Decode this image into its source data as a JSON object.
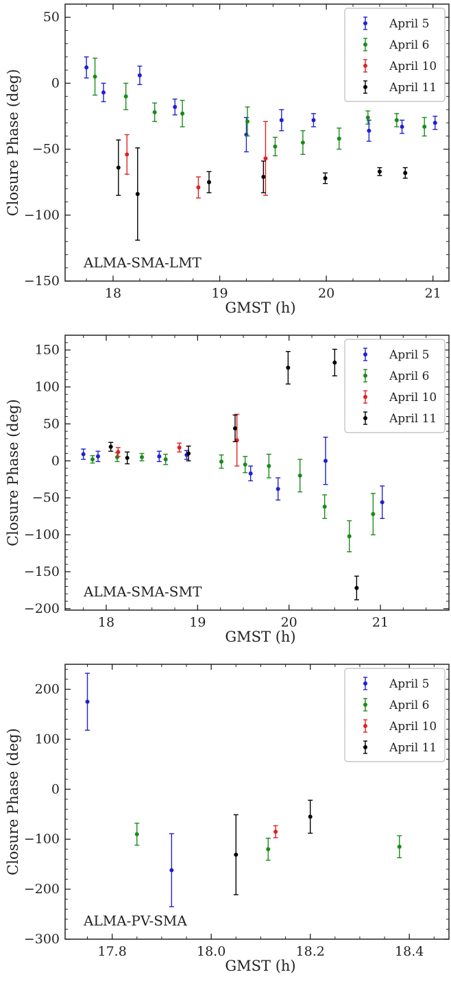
{
  "chart_data": [
    {
      "type": "scatter",
      "panel_label": "ALMA-SMA-LMT",
      "xlabel": "GMST (h)",
      "ylabel": "Closure Phase (deg)",
      "xlim": [
        17.55,
        21.15
      ],
      "ylim": [
        -150,
        60
      ],
      "xticks": [
        18,
        19,
        20,
        21
      ],
      "yticks": [
        -150,
        -100,
        -50,
        0,
        50
      ],
      "x_minor_step": 0.25,
      "y_minor_step": 10,
      "legend": "top-right",
      "grid": false,
      "series": [
        {
          "name": "April 5",
          "color": "#2020d0",
          "points": [
            [
              17.75,
              12,
              8
            ],
            [
              17.91,
              -7,
              7
            ],
            [
              18.25,
              6,
              7
            ],
            [
              18.58,
              -18,
              6
            ],
            [
              19.25,
              -39,
              13
            ],
            [
              19.58,
              -28,
              8
            ],
            [
              19.88,
              -28,
              5
            ],
            [
              20.4,
              -36,
              8
            ],
            [
              20.71,
              -33,
              5
            ],
            [
              21.02,
              -30,
              5
            ]
          ]
        },
        {
          "name": "April 6",
          "color": "#1a8a1a",
          "points": [
            [
              17.83,
              5,
              14
            ],
            [
              18.12,
              -10,
              10
            ],
            [
              18.39,
              -22,
              7
            ],
            [
              18.65,
              -23,
              10
            ],
            [
              19.26,
              -29,
              11
            ],
            [
              19.52,
              -48,
              7
            ],
            [
              19.78,
              -45,
              9
            ],
            [
              20.12,
              -42,
              8
            ],
            [
              20.39,
              -26,
              5
            ],
            [
              20.66,
              -28,
              5
            ],
            [
              20.92,
              -33,
              7
            ]
          ]
        },
        {
          "name": "April 10",
          "color": "#e02020",
          "points": [
            [
              18.13,
              -54,
              15
            ],
            [
              18.8,
              -79,
              8
            ],
            [
              19.43,
              -57,
              28
            ]
          ]
        },
        {
          "name": "April 11",
          "color": "#000000",
          "points": [
            [
              18.05,
              -64,
              21
            ],
            [
              18.23,
              -84,
              35
            ],
            [
              18.9,
              -75,
              8
            ],
            [
              19.41,
              -71,
              12
            ],
            [
              19.99,
              -72,
              4
            ],
            [
              20.5,
              -67,
              3
            ],
            [
              20.74,
              -68,
              4
            ]
          ]
        }
      ]
    },
    {
      "type": "scatter",
      "panel_label": "ALMA-SMA-SMT",
      "xlabel": "GMST (h)",
      "ylabel": "Closure Phase (deg)",
      "xlim": [
        17.55,
        21.75
      ],
      "ylim": [
        -202,
        170
      ],
      "xticks": [
        18,
        19,
        20,
        21
      ],
      "yticks": [
        -200,
        -150,
        -100,
        -50,
        0,
        50,
        100,
        150
      ],
      "x_minor_step": 0.25,
      "y_minor_step": 10,
      "legend": "top-right",
      "grid": false,
      "series": [
        {
          "name": "April 5",
          "color": "#2020d0",
          "points": [
            [
              17.75,
              9,
              7
            ],
            [
              17.91,
              6,
              7
            ],
            [
              18.58,
              6,
              7
            ],
            [
              18.88,
              8,
              6
            ],
            [
              19.58,
              -17,
              10
            ],
            [
              19.88,
              -38,
              15
            ],
            [
              20.4,
              0,
              32
            ],
            [
              21.02,
              -56,
              22
            ]
          ]
        },
        {
          "name": "April 6",
          "color": "#1a8a1a",
          "points": [
            [
              17.85,
              2,
              5
            ],
            [
              18.12,
              5,
              6
            ],
            [
              18.39,
              5,
              5
            ],
            [
              18.65,
              2,
              7
            ],
            [
              19.26,
              -1,
              9
            ],
            [
              19.52,
              -5,
              11
            ],
            [
              19.78,
              -7,
              16
            ],
            [
              20.12,
              -20,
              22
            ],
            [
              20.39,
              -62,
              16
            ],
            [
              20.66,
              -102,
              21
            ],
            [
              20.92,
              -72,
              28
            ]
          ]
        },
        {
          "name": "April 10",
          "color": "#e02020",
          "points": [
            [
              18.13,
              12,
              6
            ],
            [
              18.8,
              18,
              6
            ],
            [
              19.43,
              28,
              35
            ]
          ]
        },
        {
          "name": "April 11",
          "color": "#000000",
          "points": [
            [
              18.05,
              19,
              6
            ],
            [
              18.23,
              4,
              8
            ],
            [
              18.9,
              10,
              10
            ],
            [
              19.41,
              44,
              18
            ],
            [
              19.99,
              126,
              22
            ],
            [
              20.5,
              133,
              18
            ],
            [
              20.74,
              -172,
              16
            ]
          ]
        }
      ]
    },
    {
      "type": "scatter",
      "panel_label": "ALMA-PV-SMA",
      "xlabel": "GMST (h)",
      "ylabel": "Closure Phase (deg)",
      "xlim": [
        17.705,
        18.48
      ],
      "ylim": [
        -300,
        250
      ],
      "xticks": [
        17.8,
        18.0,
        18.2,
        18.4
      ],
      "yticks": [
        -300,
        -200,
        -100,
        0,
        100,
        200
      ],
      "x_tick_labels": [
        "17.8",
        "18.0",
        "18.2",
        "18.4"
      ],
      "x_minor_step": 0.05,
      "y_minor_step": 20,
      "legend": "top-right",
      "grid": false,
      "series": [
        {
          "name": "April 5",
          "color": "#2020d0",
          "points": [
            [
              17.75,
              175,
              57
            ],
            [
              17.92,
              -162,
              73
            ]
          ]
        },
        {
          "name": "April 6",
          "color": "#1a8a1a",
          "points": [
            [
              17.85,
              -90,
              22
            ],
            [
              18.115,
              -120,
              22
            ],
            [
              18.38,
              -115,
              22
            ]
          ]
        },
        {
          "name": "April 10",
          "color": "#e02020",
          "points": [
            [
              18.13,
              -85,
              12
            ]
          ]
        },
        {
          "name": "April 11",
          "color": "#000000",
          "points": [
            [
              18.05,
              -131,
              80
            ],
            [
              18.2,
              -55,
              33
            ]
          ]
        }
      ]
    }
  ]
}
